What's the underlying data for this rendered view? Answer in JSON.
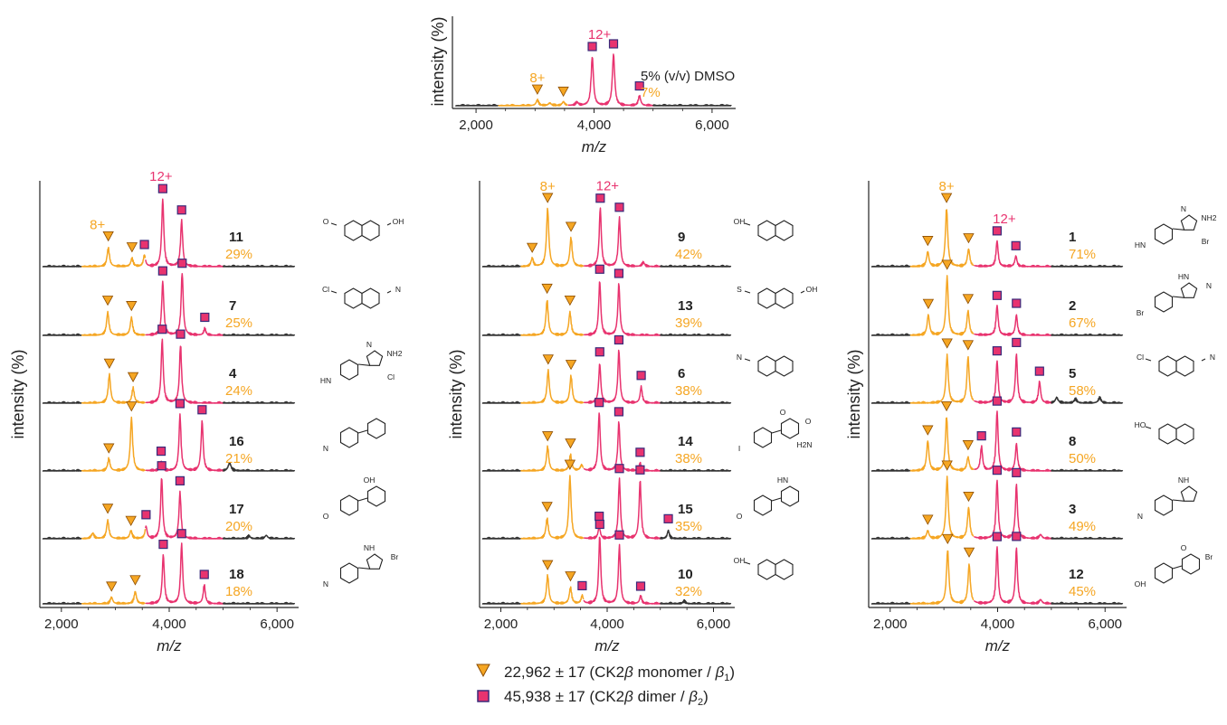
{
  "colors": {
    "monomer": "#f5a623",
    "dimer": "#e8336f",
    "baseline": "#333333",
    "axis": "#222222",
    "marker_monomer_edge": "#8a4b00",
    "marker_dimer_edge": "#3a2a7a"
  },
  "axis_labels": {
    "x": "m/z",
    "y": "intensity (%)"
  },
  "legend": {
    "monomer": {
      "prefix": "22,962 ± 17  (CK2",
      "beta": "β",
      "middle": " monomer / ",
      "beta2": "β",
      "sub": "1",
      "suffix": ")"
    },
    "dimer": {
      "prefix": "45,938 ± 17  (CK2",
      "beta": "β",
      "middle": " dimer / ",
      "beta2": "β",
      "sub": "2",
      "suffix": ")"
    }
  },
  "chart_data": [
    {
      "type": "line",
      "panel": "top",
      "xlabel": "m/z",
      "ylabel": "intensity (%)",
      "xlim": [
        1600,
        6400
      ],
      "x_ticks": [
        "2,000",
        "4,000",
        "6,000"
      ],
      "x_tick_values": [
        2000,
        4000,
        6000
      ],
      "charge_labels": {
        "monomer": "8+",
        "dimer": "12+"
      },
      "traces": [
        {
          "compound": "",
          "label": "5% (v/v) DMSO",
          "percent": "7%",
          "monomer_peaks": [
            [
              3040,
              0.09
            ],
            [
              3480,
              0.06
            ]
          ],
          "dimer_peaks": [
            [
              3970,
              0.78
            ],
            [
              4330,
              0.82
            ],
            [
              4770,
              0.16
            ]
          ],
          "extra_peaks": [
            [
              3250,
              0.04
            ],
            [
              3710,
              0.05
            ]
          ]
        }
      ]
    },
    {
      "type": "line",
      "panel": "left",
      "xlabel": "m/z",
      "ylabel": "intensity (%)",
      "xlim": [
        1600,
        6400
      ],
      "x_ticks": [
        "2,000",
        "4,000",
        "6,000"
      ],
      "x_tick_values": [
        2000,
        4000,
        6000
      ],
      "charge_labels": {
        "monomer": "8+",
        "dimer": "12+"
      },
      "traces": [
        {
          "compound": "11",
          "percent": "29%",
          "monomer_peaks": [
            [
              2870,
              0.28
            ],
            [
              3310,
              0.12
            ]
          ],
          "dimer_peaks": [
            [
              3540,
              0.17
            ],
            [
              3880,
              1.0
            ],
            [
              4230,
              0.68
            ]
          ],
          "extra_peaks": []
        },
        {
          "compound": "7",
          "percent": "25%",
          "monomer_peaks": [
            [
              2860,
              0.34
            ],
            [
              3300,
              0.26
            ]
          ],
          "dimer_peaks": [
            [
              3880,
              0.8
            ],
            [
              4240,
              0.92
            ],
            [
              4660,
              0.1
            ]
          ],
          "extra_peaks": []
        },
        {
          "compound": "4",
          "percent": "24%",
          "monomer_peaks": [
            [
              2890,
              0.42
            ],
            [
              3330,
              0.22
            ]
          ],
          "dimer_peaks": [
            [
              3870,
              0.94
            ],
            [
              4210,
              0.86
            ]
          ],
          "extra_peaks": []
        },
        {
          "compound": "16",
          "percent": "21%",
          "monomer_peaks": [
            [
              2880,
              0.18
            ],
            [
              3300,
              0.78
            ]
          ],
          "dimer_peaks": [
            [
              3850,
              0.14
            ],
            [
              4200,
              0.82
            ],
            [
              4610,
              0.74
            ]
          ],
          "extra_peaks": [
            [
              5120,
              0.12
            ]
          ]
        },
        {
          "compound": "17",
          "percent": "20%",
          "monomer_peaks": [
            [
              2860,
              0.27
            ],
            [
              3290,
              0.12
            ]
          ],
          "dimer_peaks": [
            [
              3570,
              0.18
            ],
            [
              3860,
              0.9
            ],
            [
              4200,
              0.68
            ]
          ],
          "extra_peaks": [
            [
              2580,
              0.08
            ],
            [
              5480,
              0.04
            ],
            [
              5800,
              0.05
            ]
          ]
        },
        {
          "compound": "18",
          "percent": "18%",
          "monomer_peaks": [
            [
              2930,
              0.1
            ],
            [
              3370,
              0.18
            ]
          ],
          "dimer_peaks": [
            [
              3890,
              0.72
            ],
            [
              4230,
              0.88
            ],
            [
              4650,
              0.28
            ]
          ],
          "extra_peaks": []
        }
      ]
    },
    {
      "type": "line",
      "panel": "middle",
      "xlabel": "m/z",
      "ylabel": "intensity (%)",
      "xlim": [
        1600,
        6400
      ],
      "x_ticks": [
        "2,000",
        "4,000",
        "6,000"
      ],
      "x_tick_values": [
        2000,
        4000,
        6000
      ],
      "charge_labels": {
        "monomer": "8+",
        "dimer": "12+"
      },
      "traces": [
        {
          "compound": "9",
          "percent": "42%",
          "monomer_peaks": [
            [
              2590,
              0.12
            ],
            [
              2880,
              0.86
            ],
            [
              3320,
              0.42
            ]
          ],
          "dimer_peaks": [
            [
              3870,
              0.86
            ],
            [
              4230,
              0.72
            ]
          ],
          "extra_peaks": [
            [
              4680,
              0.06
            ]
          ]
        },
        {
          "compound": "13",
          "percent": "39%",
          "monomer_peaks": [
            [
              2870,
              0.52
            ],
            [
              3300,
              0.34
            ]
          ],
          "dimer_peaks": [
            [
              3860,
              0.8
            ],
            [
              4220,
              0.76
            ]
          ],
          "extra_peaks": []
        },
        {
          "compound": "6",
          "percent": "38%",
          "monomer_peaks": [
            [
              2890,
              0.48
            ],
            [
              3320,
              0.4
            ]
          ],
          "dimer_peaks": [
            [
              3860,
              0.58
            ],
            [
              4220,
              0.78
            ],
            [
              4640,
              0.24
            ]
          ],
          "extra_peaks": []
        },
        {
          "compound": "14",
          "percent": "38%",
          "monomer_peaks": [
            [
              2880,
              0.36
            ],
            [
              3310,
              0.24
            ]
          ],
          "dimer_peaks": [
            [
              3850,
              0.86
            ],
            [
              4220,
              0.72
            ],
            [
              4620,
              0.12
            ]
          ],
          "extra_peaks": [
            [
              3520,
              0.08
            ]
          ]
        },
        {
          "compound": "15",
          "percent": "35%",
          "monomer_peaks": [
            [
              2870,
              0.3
            ],
            [
              3300,
              0.92
            ]
          ],
          "dimer_peaks": [
            [
              3850,
              0.18
            ],
            [
              4230,
              0.88
            ],
            [
              4620,
              0.86
            ],
            [
              5150,
              0.12
            ]
          ],
          "extra_peaks": []
        },
        {
          "compound": "10",
          "percent": "32%",
          "monomer_peaks": [
            [
              2880,
              0.42
            ],
            [
              3310,
              0.24
            ]
          ],
          "dimer_peaks": [
            [
              3530,
              0.12
            ],
            [
              3860,
              1.0
            ],
            [
              4230,
              0.86
            ],
            [
              4630,
              0.12
            ]
          ],
          "extra_peaks": [
            [
              5450,
              0.04
            ]
          ]
        }
      ]
    },
    {
      "type": "line",
      "panel": "right",
      "xlabel": "m/z",
      "ylabel": "intensity (%)",
      "xlim": [
        1600,
        6400
      ],
      "x_ticks": [
        "2,000",
        "4,000",
        "6,000"
      ],
      "x_tick_values": [
        2000,
        4000,
        6000
      ],
      "charge_labels": {
        "monomer": "8+",
        "dimer": "12+"
      },
      "traces": [
        {
          "compound": "1",
          "percent": "71%",
          "monomer_peaks": [
            [
              2700,
              0.22
            ],
            [
              3050,
              0.86
            ],
            [
              3460,
              0.26
            ]
          ],
          "dimer_peaks": [
            [
              3990,
              0.38
            ],
            [
              4340,
              0.16
            ]
          ],
          "extra_peaks": []
        },
        {
          "compound": "2",
          "percent": "67%",
          "monomer_peaks": [
            [
              2710,
              0.3
            ],
            [
              3060,
              0.86
            ],
            [
              3450,
              0.36
            ]
          ],
          "dimer_peaks": [
            [
              3990,
              0.44
            ],
            [
              4350,
              0.3
            ]
          ],
          "extra_peaks": []
        },
        {
          "compound": "5",
          "percent": "58%",
          "monomer_peaks": [
            [
              3060,
              0.7
            ],
            [
              3450,
              0.68
            ]
          ],
          "dimer_peaks": [
            [
              3990,
              0.62
            ],
            [
              4350,
              0.72
            ],
            [
              4780,
              0.32
            ]
          ],
          "extra_peaks": [
            [
              5100,
              0.08
            ],
            [
              5450,
              0.06
            ],
            [
              5900,
              0.08
            ]
          ]
        },
        {
          "compound": "8",
          "percent": "50%",
          "monomer_peaks": [
            [
              2700,
              0.44
            ],
            [
              3050,
              0.8
            ],
            [
              3450,
              0.2
            ]
          ],
          "dimer_peaks": [
            [
              3700,
              0.36
            ],
            [
              3990,
              0.88
            ],
            [
              4350,
              0.4
            ]
          ],
          "extra_peaks": []
        },
        {
          "compound": "3",
          "percent": "49%",
          "monomer_peaks": [
            [
              2700,
              0.12
            ],
            [
              3060,
              0.9
            ],
            [
              3460,
              0.46
            ]
          ],
          "dimer_peaks": [
            [
              3990,
              0.86
            ],
            [
              4350,
              0.8
            ]
          ],
          "extra_peaks": [
            [
              4800,
              0.06
            ]
          ]
        },
        {
          "compound": "12",
          "percent": "45%",
          "monomer_peaks": [
            [
              3070,
              0.8
            ],
            [
              3470,
              0.58
            ]
          ],
          "dimer_peaks": [
            [
              3990,
              0.84
            ],
            [
              4350,
              0.82
            ]
          ],
          "extra_peaks": [
            [
              4800,
              0.06
            ]
          ]
        }
      ]
    }
  ],
  "structures": [
    {
      "compound": "11",
      "atom_labels": [
        "O",
        "OH"
      ]
    },
    {
      "compound": "7",
      "atom_labels": [
        "Cl",
        "N"
      ]
    },
    {
      "compound": "4",
      "atom_labels": [
        "HN",
        "N",
        "NH2",
        "Cl"
      ]
    },
    {
      "compound": "16",
      "atom_labels": [
        "N"
      ]
    },
    {
      "compound": "17",
      "atom_labels": [
        "O",
        "OH"
      ]
    },
    {
      "compound": "18",
      "atom_labels": [
        "N",
        "NH",
        "Br"
      ]
    },
    {
      "compound": "9",
      "atom_labels": [
        "OH"
      ]
    },
    {
      "compound": "13",
      "atom_labels": [
        "S",
        "OH"
      ]
    },
    {
      "compound": "6",
      "atom_labels": [
        "N"
      ]
    },
    {
      "compound": "14",
      "atom_labels": [
        "I",
        "O",
        "O",
        "H2N"
      ]
    },
    {
      "compound": "15",
      "atom_labels": [
        "O",
        "HN"
      ]
    },
    {
      "compound": "10",
      "atom_labels": [
        "OH"
      ]
    },
    {
      "compound": "1",
      "atom_labels": [
        "HN",
        "N",
        "NH2",
        "Br"
      ]
    },
    {
      "compound": "2",
      "atom_labels": [
        "Br",
        "HN",
        "N"
      ]
    },
    {
      "compound": "5",
      "atom_labels": [
        "Cl",
        "N"
      ]
    },
    {
      "compound": "8",
      "atom_labels": [
        "HO"
      ]
    },
    {
      "compound": "3",
      "atom_labels": [
        "N",
        "NH"
      ]
    },
    {
      "compound": "12",
      "atom_labels": [
        "OH",
        "O",
        "Br"
      ]
    }
  ]
}
